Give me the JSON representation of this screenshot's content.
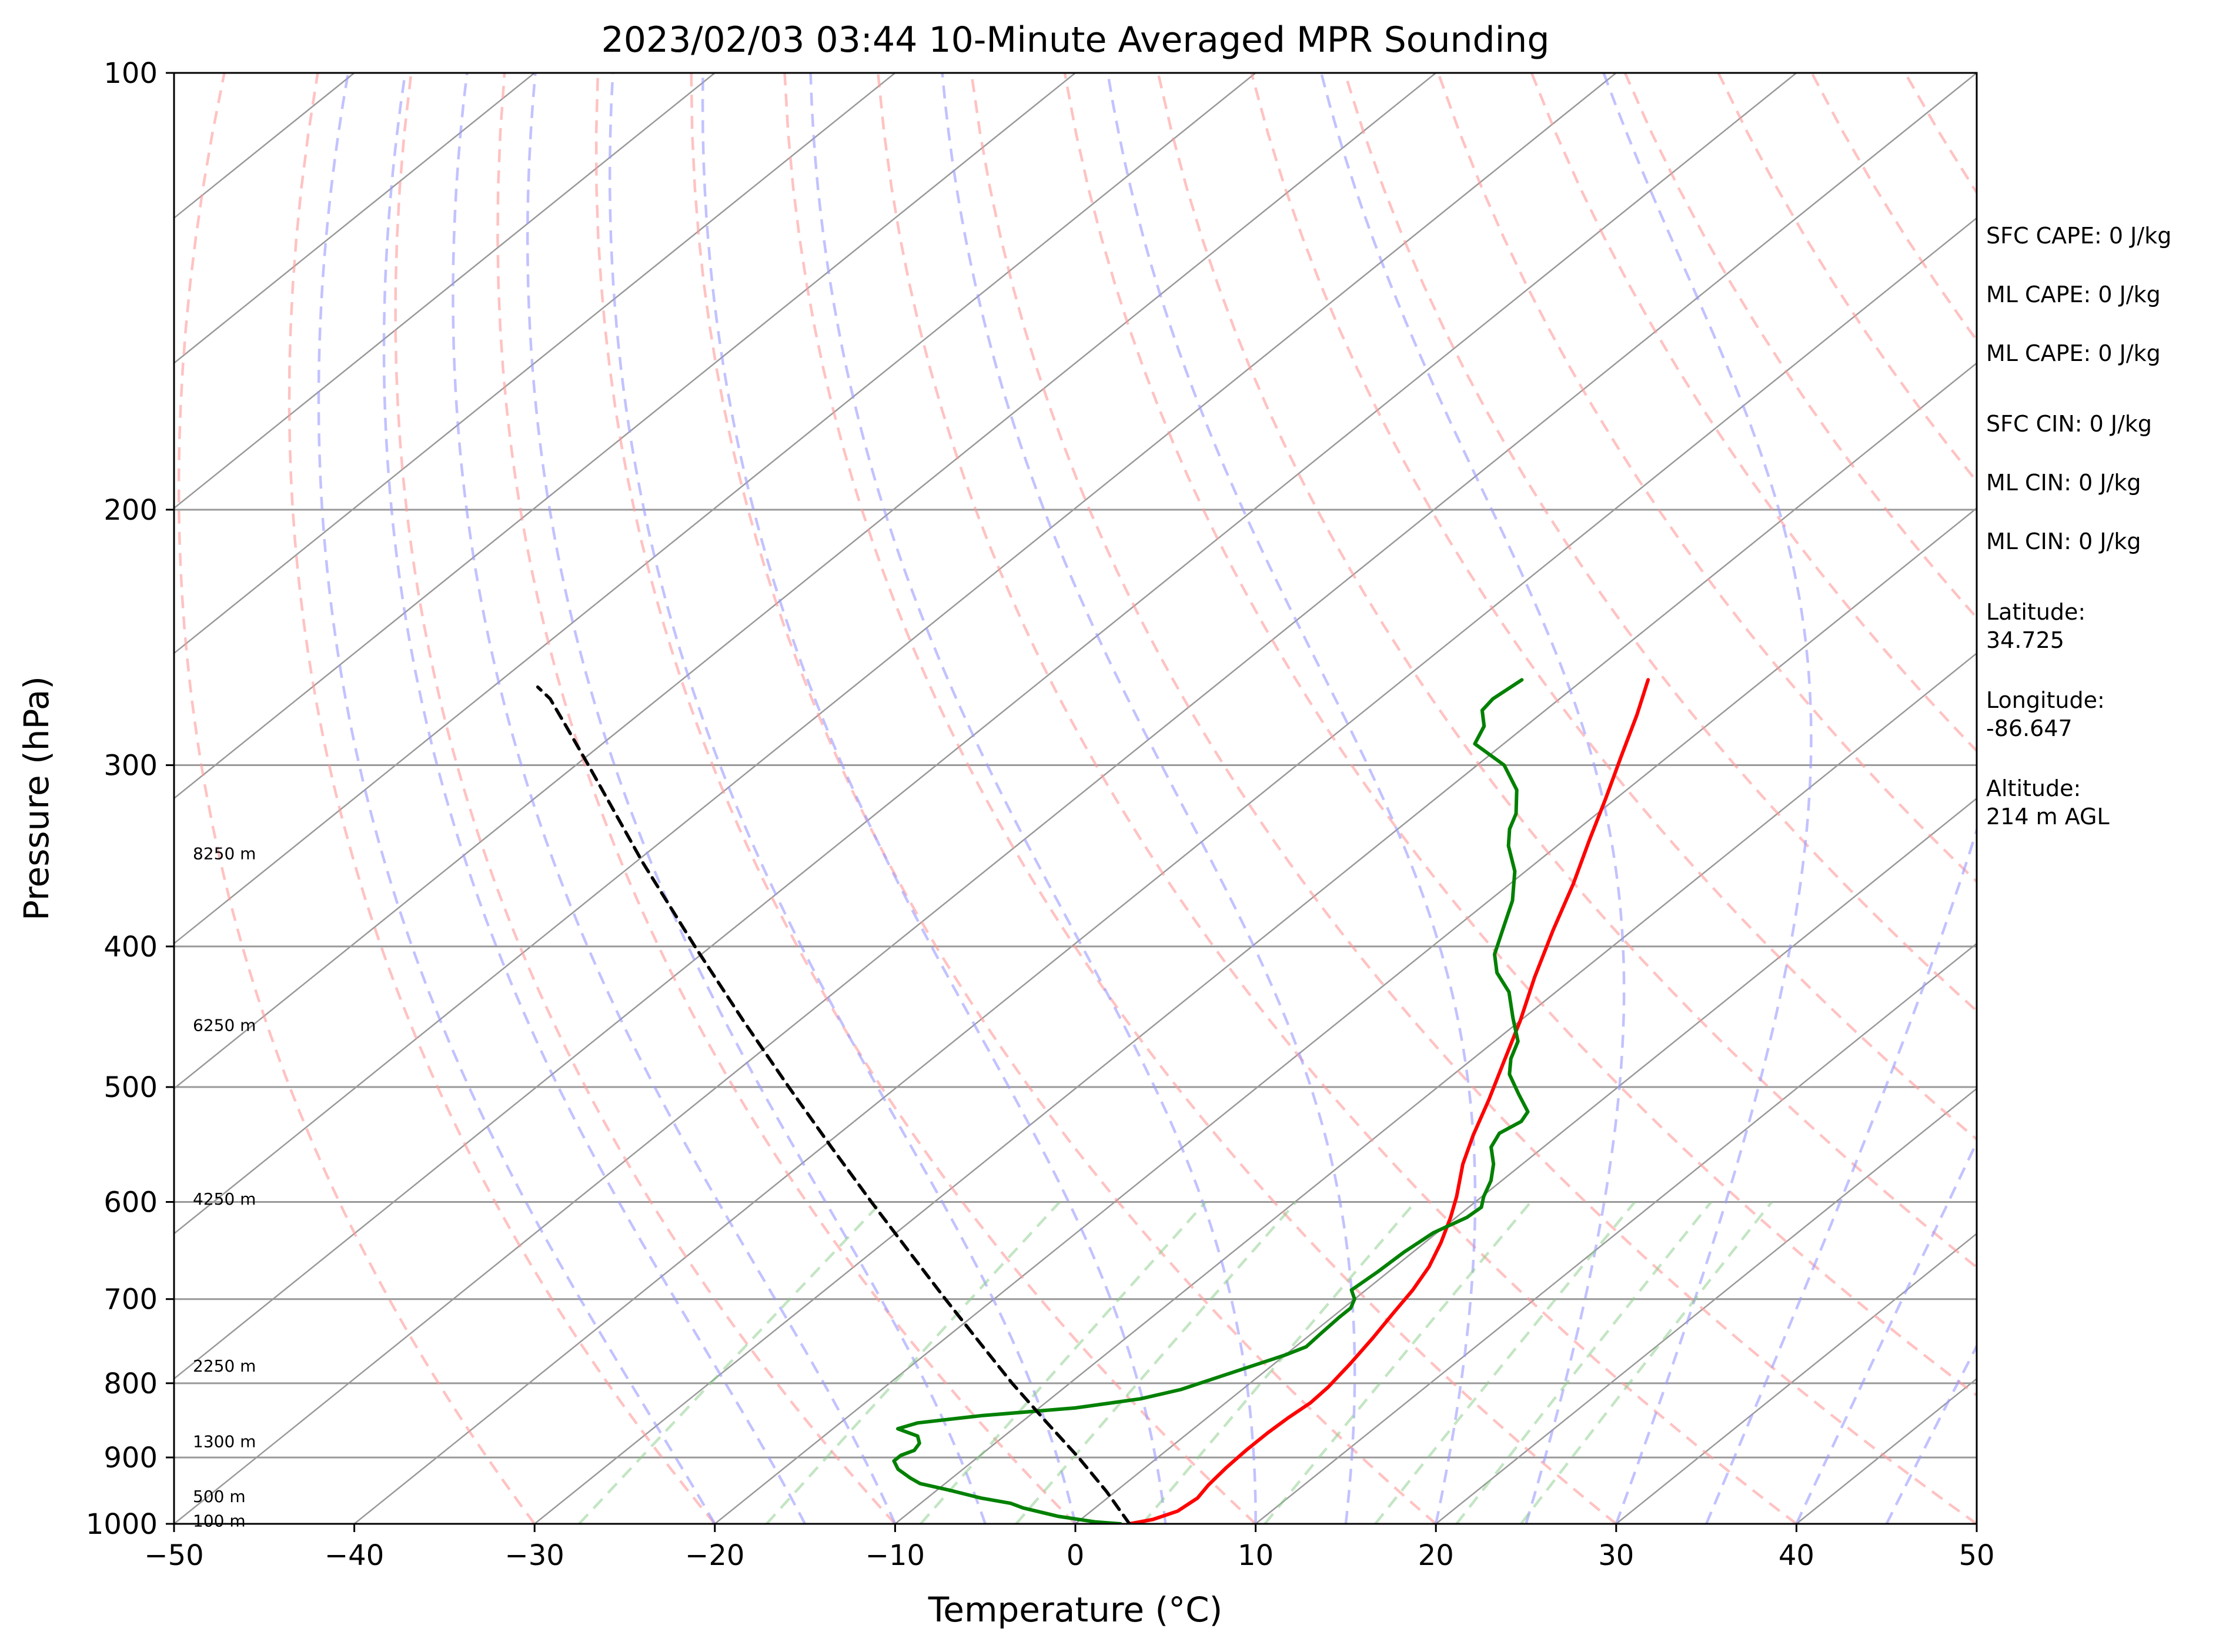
{
  "chart_data": {
    "type": "line",
    "title": "2023/02/03 03:44 10-Minute Averaged MPR Sounding",
    "xlabel": "Temperature (°C)",
    "ylabel": "Pressure (hPa)",
    "xlim": [
      -50,
      50
    ],
    "ylim": [
      1000,
      100
    ],
    "y_scale": "log",
    "x_ticks": [
      "−50",
      "−40",
      "−30",
      "−20",
      "−10",
      "0",
      "10",
      "20",
      "30",
      "40",
      "50"
    ],
    "y_ticks": [
      "100",
      "200",
      "300",
      "400",
      "500",
      "600",
      "700",
      "800",
      "900",
      "1000"
    ],
    "grid": true,
    "skew_t": true,
    "series": [
      {
        "color": "#ff0000",
        "points": [
          [
            3.0,
            1000
          ],
          [
            4.0,
            993
          ],
          [
            4.8,
            980
          ],
          [
            5.0,
            960
          ],
          [
            4.7,
            940
          ],
          [
            4.5,
            915
          ],
          [
            4.4,
            890
          ],
          [
            4.4,
            865
          ],
          [
            4.5,
            845
          ],
          [
            4.7,
            825
          ],
          [
            4.6,
            805
          ],
          [
            4.2,
            775
          ],
          [
            3.7,
            745
          ],
          [
            3.1,
            715
          ],
          [
            2.6,
            690
          ],
          [
            1.9,
            665
          ],
          [
            0.9,
            640
          ],
          [
            -0.3,
            615
          ],
          [
            -1.4,
            595
          ],
          [
            -3.3,
            565
          ],
          [
            -4.7,
            540
          ],
          [
            -6.3,
            510
          ],
          [
            -8.1,
            480
          ],
          [
            -10.0,
            450
          ],
          [
            -12.2,
            420
          ],
          [
            -14.4,
            390
          ],
          [
            -16.5,
            362
          ],
          [
            -18.6,
            338
          ],
          [
            -20.6,
            316
          ],
          [
            -22.6,
            296
          ],
          [
            -24.6,
            277
          ],
          [
            -26.4,
            262
          ]
        ]
      },
      {
        "color": "#008000",
        "points": [
          [
            2.5,
            1000
          ],
          [
            1.0,
            997
          ],
          [
            -1.5,
            988
          ],
          [
            -4.0,
            975
          ],
          [
            -5.0,
            968
          ],
          [
            -7.0,
            960
          ],
          [
            -9.3,
            948
          ],
          [
            -11.4,
            938
          ],
          [
            -12.3,
            930
          ],
          [
            -13.6,
            917
          ],
          [
            -14.4,
            905
          ],
          [
            -14.4,
            897
          ],
          [
            -14.0,
            890
          ],
          [
            -14.2,
            880
          ],
          [
            -14.8,
            870
          ],
          [
            -16.4,
            860
          ],
          [
            -15.7,
            852
          ],
          [
            -12.6,
            842
          ],
          [
            -8.0,
            832
          ],
          [
            -5.0,
            820
          ],
          [
            -3.4,
            808
          ],
          [
            -2.0,
            790
          ],
          [
            0.0,
            765
          ],
          [
            0.6,
            755
          ],
          [
            0.5,
            740
          ],
          [
            0.4,
            720
          ],
          [
            0.4,
            710
          ],
          [
            0.0,
            700
          ],
          [
            -0.8,
            690
          ],
          [
            -0.6,
            670
          ],
          [
            -0.5,
            650
          ],
          [
            -0.2,
            630
          ],
          [
            0.6,
            615
          ],
          [
            0.7,
            605
          ],
          [
            0.1,
            595
          ],
          [
            -0.6,
            580
          ],
          [
            -1.6,
            565
          ],
          [
            -2.9,
            550
          ],
          [
            -3.4,
            538
          ],
          [
            -3.0,
            528
          ],
          [
            -3.3,
            520
          ],
          [
            -5.1,
            505
          ],
          [
            -6.9,
            490
          ],
          [
            -7.9,
            478
          ],
          [
            -8.7,
            465
          ],
          [
            -10.6,
            448
          ],
          [
            -12.6,
            430
          ],
          [
            -14.6,
            417
          ],
          [
            -16.0,
            405
          ],
          [
            -17.2,
            390
          ],
          [
            -18.7,
            372
          ],
          [
            -20.6,
            355
          ],
          [
            -22.7,
            341
          ],
          [
            -23.8,
            332
          ],
          [
            -24.5,
            324
          ],
          [
            -26.1,
            312
          ],
          [
            -28.5,
            300
          ],
          [
            -31.6,
            290
          ],
          [
            -32.3,
            282
          ],
          [
            -33.5,
            275
          ],
          [
            -33.7,
            270
          ],
          [
            -33.4,
            262
          ]
        ]
      },
      {
        "color": "#000000",
        "dashed": true,
        "points": [
          [
            3.0,
            1000
          ],
          [
            -0.5,
            950
          ],
          [
            -4.4,
            900
          ],
          [
            -8.7,
            850
          ],
          [
            -13.2,
            800
          ],
          [
            -17.8,
            750
          ],
          [
            -22.7,
            700
          ],
          [
            -27.9,
            650
          ],
          [
            -33.5,
            600
          ],
          [
            -39.5,
            550
          ],
          [
            -46.0,
            500
          ],
          [
            -53.1,
            450
          ],
          [
            -60.9,
            400
          ],
          [
            -69.6,
            350
          ],
          [
            -79.3,
            300
          ],
          [
            -83.0,
            283
          ],
          [
            -86.0,
            270
          ],
          [
            -87.5,
            265
          ]
        ]
      }
    ],
    "height_labels": [
      {
        "label": "8250 m",
        "p": 345
      },
      {
        "label": "6250 m",
        "p": 453
      },
      {
        "label": "4250 m",
        "p": 597
      },
      {
        "label": "2250 m",
        "p": 778
      },
      {
        "label": "1300 m",
        "p": 877
      },
      {
        "label": "500 m",
        "p": 957
      },
      {
        "label": "100 m",
        "p": 995
      }
    ],
    "info": [
      "SFC CAPE: 0 J/kg",
      "ML CAPE: 0 J/kg",
      "ML CAPE: 0 J/kg",
      "SFC CIN: 0 J/kg",
      "ML CIN: 0 J/kg",
      "ML CIN: 0 J/kg",
      "Latitude:\n34.725",
      "Longitude:\n-86.647",
      "Altitude:\n214 m AGL"
    ],
    "colors": {
      "temperature": "#ff0000",
      "dewpoint": "#008000",
      "parcel": "#000000",
      "dry_adiabats": "#ff9999",
      "moist_adiabats": "#9999ff",
      "mixing_ratio": "#88cc88",
      "isotherms": "#999999"
    }
  }
}
